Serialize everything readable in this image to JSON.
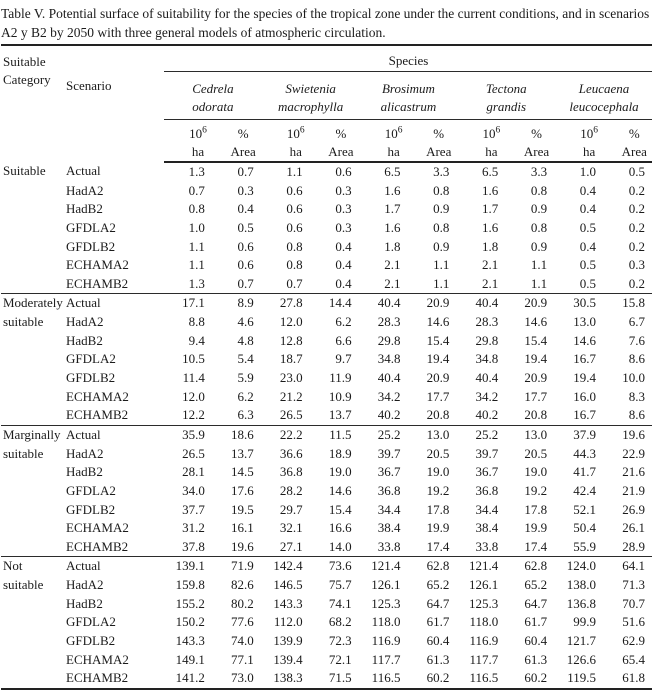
{
  "title": "Table V. Potential surface of suitability for the species of the tropical zone under the current conditions, and in scenarios A2 y B2 by 2050 with three general models of atmospheric circulation.",
  "colors": {
    "text": "#1b1b1b",
    "rule": "#2b2b2b",
    "background": "#ffffff"
  },
  "table": {
    "category_header": "Suitable Category",
    "scenario_header": "Scenario",
    "species_header": "Species",
    "species": [
      {
        "line1": "Cedrela",
        "line2": "odorata"
      },
      {
        "line1": "Swietenia",
        "line2": "macrophylla"
      },
      {
        "line1": "Brosimum",
        "line2": "alicastrum"
      },
      {
        "line1": "Tectona",
        "line2": "grandis"
      },
      {
        "line1": "Leucaena",
        "line2": "leucocephala"
      }
    ],
    "units": {
      "area_base": "10",
      "area_exp": "6",
      "area_line2": "ha",
      "pct_line1": "%",
      "pct_line2": "Area"
    },
    "groups": [
      {
        "category": "Suitable",
        "rows": [
          {
            "scenario": "Actual",
            "values": [
              "1.3",
              "0.7",
              "1.1",
              "0.6",
              "6.5",
              "3.3",
              "6.5",
              "3.3",
              "1.0",
              "0.5"
            ]
          },
          {
            "scenario": "HadA2",
            "values": [
              "0.7",
              "0.3",
              "0.6",
              "0.3",
              "1.6",
              "0.8",
              "1.6",
              "0.8",
              "0.4",
              "0.2"
            ]
          },
          {
            "scenario": "HadB2",
            "values": [
              "0.8",
              "0.4",
              "0.6",
              "0.3",
              "1.7",
              "0.9",
              "1.7",
              "0.9",
              "0.4",
              "0.2"
            ]
          },
          {
            "scenario": "GFDLA2",
            "values": [
              "1.0",
              "0.5",
              "0.6",
              "0.3",
              "1.6",
              "0.8",
              "1.6",
              "0.8",
              "0.5",
              "0.2"
            ]
          },
          {
            "scenario": "GFDLB2",
            "values": [
              "1.1",
              "0.6",
              "0.8",
              "0.4",
              "1.8",
              "0.9",
              "1.8",
              "0.9",
              "0.4",
              "0.2"
            ]
          },
          {
            "scenario": "ECHAMA2",
            "values": [
              "1.1",
              "0.6",
              "0.8",
              "0.4",
              "2.1",
              "1.1",
              "2.1",
              "1.1",
              "0.5",
              "0.3"
            ]
          },
          {
            "scenario": "ECHAMB2",
            "values": [
              "1.3",
              "0.7",
              "0.7",
              "0.4",
              "2.1",
              "1.1",
              "2.1",
              "1.1",
              "0.5",
              "0.2"
            ]
          }
        ]
      },
      {
        "category": "Moderately suitable",
        "rows": [
          {
            "scenario": "Actual",
            "values": [
              "17.1",
              "8.9",
              "27.8",
              "14.4",
              "40.4",
              "20.9",
              "40.4",
              "20.9",
              "30.5",
              "15.8"
            ]
          },
          {
            "scenario": "HadA2",
            "values": [
              "8.8",
              "4.6",
              "12.0",
              "6.2",
              "28.3",
              "14.6",
              "28.3",
              "14.6",
              "13.0",
              "6.7"
            ]
          },
          {
            "scenario": "HadB2",
            "values": [
              "9.4",
              "4.8",
              "12.8",
              "6.6",
              "29.8",
              "15.4",
              "29.8",
              "15.4",
              "14.6",
              "7.6"
            ]
          },
          {
            "scenario": "GFDLA2",
            "values": [
              "10.5",
              "5.4",
              "18.7",
              "9.7",
              "34.8",
              "19.4",
              "34.8",
              "19.4",
              "16.7",
              "8.6"
            ]
          },
          {
            "scenario": "GFDLB2",
            "values": [
              "11.4",
              "5.9",
              "23.0",
              "11.9",
              "40.4",
              "20.9",
              "40.4",
              "20.9",
              "19.4",
              "10.0"
            ]
          },
          {
            "scenario": "ECHAMA2",
            "values": [
              "12.0",
              "6.2",
              "21.2",
              "10.9",
              "34.2",
              "17.7",
              "34.2",
              "17.7",
              "16.0",
              "8.3"
            ]
          },
          {
            "scenario": "ECHAMB2",
            "values": [
              "12.2",
              "6.3",
              "26.5",
              "13.7",
              "40.2",
              "20.8",
              "40.2",
              "20.8",
              "16.7",
              "8.6"
            ]
          }
        ]
      },
      {
        "category": "Marginally suitable",
        "rows": [
          {
            "scenario": "Actual",
            "values": [
              "35.9",
              "18.6",
              "22.2",
              "11.5",
              "25.2",
              "13.0",
              "25.2",
              "13.0",
              "37.9",
              "19.6"
            ]
          },
          {
            "scenario": "HadA2",
            "values": [
              "26.5",
              "13.7",
              "36.6",
              "18.9",
              "39.7",
              "20.5",
              "39.7",
              "20.5",
              "44.3",
              "22.9"
            ]
          },
          {
            "scenario": "HadB2",
            "values": [
              "28.1",
              "14.5",
              "36.8",
              "19.0",
              "36.7",
              "19.0",
              "36.7",
              "19.0",
              "41.7",
              "21.6"
            ]
          },
          {
            "scenario": "GFDLA2",
            "values": [
              "34.0",
              "17.6",
              "28.2",
              "14.6",
              "36.8",
              "19.2",
              "36.8",
              "19.2",
              "42.4",
              "21.9"
            ]
          },
          {
            "scenario": "GFDLB2",
            "values": [
              "37.7",
              "19.5",
              "29.7",
              "15.4",
              "34.4",
              "17.8",
              "34.4",
              "17.8",
              "52.1",
              "26.9"
            ]
          },
          {
            "scenario": "ECHAMA2",
            "values": [
              "31.2",
              "16.1",
              "32.1",
              "16.6",
              "38.4",
              "19.9",
              "38.4",
              "19.9",
              "50.4",
              "26.1"
            ]
          },
          {
            "scenario": "ECHAMB2",
            "values": [
              "37.8",
              "19.6",
              "27.1",
              "14.0",
              "33.8",
              "17.4",
              "33.8",
              "17.4",
              "55.9",
              "28.9"
            ]
          }
        ]
      },
      {
        "category": "Not suitable",
        "rows": [
          {
            "scenario": "Actual",
            "values": [
              "139.1",
              "71.9",
              "142.4",
              "73.6",
              "121.4",
              "62.8",
              "121.4",
              "62.8",
              "124.0",
              "64.1"
            ]
          },
          {
            "scenario": "HadA2",
            "values": [
              "159.8",
              "82.6",
              "146.5",
              "75.7",
              "126.1",
              "65.2",
              "126.1",
              "65.2",
              "138.0",
              "71.3"
            ]
          },
          {
            "scenario": "HadB2",
            "values": [
              "155.2",
              "80.2",
              "143.3",
              "74.1",
              "125.3",
              "64.7",
              "125.3",
              "64.7",
              "136.8",
              "70.7"
            ]
          },
          {
            "scenario": "GFDLA2",
            "values": [
              "150.2",
              "77.6",
              "112.0",
              "68.2",
              "118.0",
              "61.7",
              "118.0",
              "61.7",
              "99.9",
              "51.6"
            ]
          },
          {
            "scenario": "GFDLB2",
            "values": [
              "143.3",
              "74.0",
              "139.9",
              "72.3",
              "116.9",
              "60.4",
              "116.9",
              "60.4",
              "121.7",
              "62.9"
            ]
          },
          {
            "scenario": "ECHAMA2",
            "values": [
              "149.1",
              "77.1",
              "139.4",
              "72.1",
              "117.7",
              "61.3",
              "117.7",
              "61.3",
              "126.6",
              "65.4"
            ]
          },
          {
            "scenario": "ECHAMB2",
            "values": [
              "141.2",
              "73.0",
              "138.3",
              "71.5",
              "116.5",
              "60.2",
              "116.5",
              "60.2",
              "119.5",
              "61.8"
            ]
          }
        ]
      }
    ]
  }
}
